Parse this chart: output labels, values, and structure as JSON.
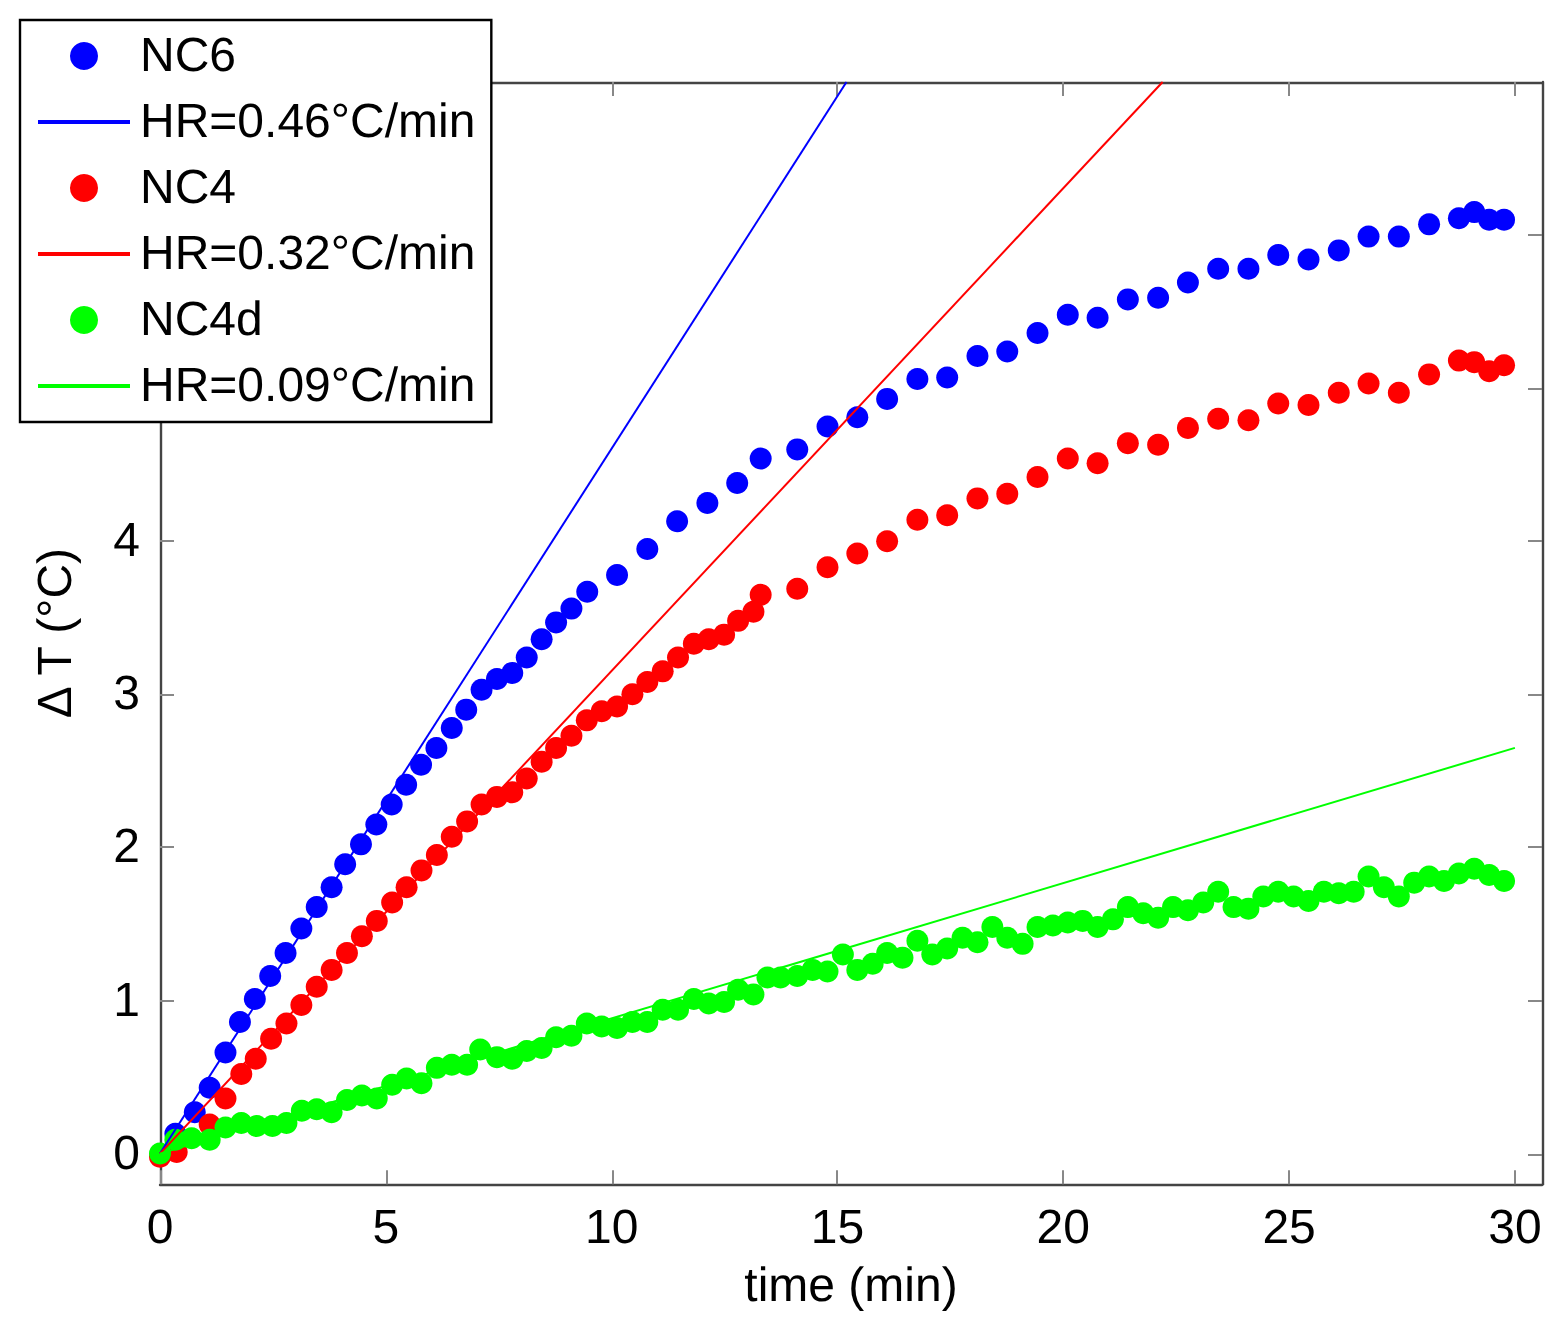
{
  "chart_data": {
    "type": "scatter",
    "xlabel": "time (min)",
    "ylabel": "Δ T (°C)",
    "xlim": [
      0,
      30.6
    ],
    "xticks": [
      0,
      5,
      10,
      15,
      20,
      25,
      30
    ],
    "ylim": [
      -0.2,
      7
    ],
    "yticks": [
      0,
      1,
      2,
      3,
      4,
      {
        "value": 5,
        "label": null
      },
      {
        "value": 6,
        "label": null
      }
    ],
    "grid": false,
    "legend": "top left",
    "marker": "circle",
    "series": [
      {
        "name": "NC6",
        "color": "#0000ff",
        "x": [
          0.34,
          0.77,
          1.1,
          1.45,
          1.77,
          2.1,
          2.44,
          2.78,
          3.13,
          3.47,
          3.8,
          4.1,
          4.45,
          4.79,
          5.13,
          5.45,
          5.78,
          6.12,
          6.46,
          6.78,
          7.12,
          7.46,
          7.8,
          8.12,
          8.45,
          8.77,
          9.11,
          9.46,
          10.12,
          10.79,
          11.45,
          12.12,
          12.78,
          13.3,
          14.11,
          14.78,
          15.44,
          16.1,
          16.77,
          17.43,
          18.1,
          18.76,
          19.43,
          20.1,
          20.76,
          21.43,
          22.1,
          22.76,
          23.43,
          24.1,
          24.76,
          25.43,
          26.1,
          26.76,
          27.43,
          28.1,
          28.76,
          29.1,
          29.43,
          29.76
        ],
        "values": [
          0.13,
          0.27,
          0.43,
          0.66,
          0.86,
          1.01,
          1.16,
          1.31,
          1.47,
          1.61,
          1.74,
          1.89,
          2.02,
          2.15,
          2.28,
          2.41,
          2.54,
          2.65,
          2.78,
          2.9,
          3.03,
          3.1,
          3.14,
          3.24,
          3.36,
          3.47,
          3.56,
          3.67,
          3.78,
          3.95,
          4.13,
          4.25,
          4.38,
          4.54,
          4.6,
          4.75,
          4.81,
          4.93,
          5.06,
          5.07,
          5.21,
          5.24,
          5.36,
          5.48,
          5.46,
          5.58,
          5.59,
          5.69,
          5.78,
          5.78,
          5.87,
          5.84,
          5.9,
          5.99,
          5.99,
          6.07,
          6.11,
          6.15,
          6.1,
          6.1
        ]
      },
      {
        "name": "HR=0.46°C/min",
        "type": "line",
        "marker": "none",
        "color": "#0000ff",
        "x": [
          0,
          15.2
        ],
        "values": [
          0,
          7
        ]
      },
      {
        "name": "NC4",
        "color": "#ff0000",
        "x": [
          0,
          0.37,
          1.1,
          1.45,
          1.8,
          2.12,
          2.46,
          2.8,
          3.13,
          3.47,
          3.8,
          4.14,
          4.47,
          4.8,
          5.14,
          5.46,
          5.79,
          6.13,
          6.46,
          6.8,
          7.12,
          7.46,
          7.8,
          8.12,
          8.45,
          8.77,
          9.11,
          9.45,
          9.78,
          10.12,
          10.46,
          10.79,
          11.13,
          11.47,
          11.82,
          12.15,
          12.49,
          12.8,
          13.14,
          13.3,
          14.11,
          14.78,
          15.44,
          16.1,
          16.77,
          17.43,
          18.1,
          18.76,
          19.43,
          20.1,
          20.76,
          21.43,
          22.1,
          22.76,
          23.43,
          24.1,
          24.76,
          25.43,
          26.1,
          26.76,
          27.43,
          28.1,
          28.76,
          29.1,
          29.43,
          29.76
        ],
        "values": [
          -0.02,
          0.01,
          0.19,
          0.36,
          0.52,
          0.62,
          0.75,
          0.85,
          0.97,
          1.09,
          1.2,
          1.31,
          1.42,
          1.52,
          1.64,
          1.74,
          1.85,
          1.95,
          2.07,
          2.17,
          2.28,
          2.33,
          2.36,
          2.45,
          2.56,
          2.65,
          2.73,
          2.83,
          2.89,
          2.92,
          3.0,
          3.08,
          3.15,
          3.24,
          3.33,
          3.36,
          3.39,
          3.48,
          3.54,
          3.65,
          3.69,
          3.83,
          3.92,
          4.0,
          4.14,
          4.17,
          4.28,
          4.31,
          4.42,
          4.54,
          4.51,
          4.64,
          4.63,
          4.74,
          4.8,
          4.79,
          4.9,
          4.89,
          4.97,
          5.03,
          4.97,
          5.09,
          5.18,
          5.17,
          5.11,
          5.15
        ]
      },
      {
        "name": "HR=0.32°C/min",
        "type": "line",
        "marker": "none",
        "color": "#ff0000",
        "x": [
          0,
          22.2
        ],
        "values": [
          0,
          7
        ]
      },
      {
        "name": "NC4d",
        "color": "#00ff00",
        "x": [
          0,
          0.34,
          0.7,
          1.1,
          1.45,
          1.8,
          2.14,
          2.49,
          2.8,
          3.14,
          3.47,
          3.8,
          4.14,
          4.47,
          4.8,
          5.14,
          5.46,
          5.79,
          6.13,
          6.46,
          6.8,
          7.09,
          7.46,
          7.8,
          8.12,
          8.45,
          8.77,
          9.11,
          9.45,
          9.78,
          10.12,
          10.46,
          10.79,
          11.13,
          11.47,
          11.82,
          12.15,
          12.49,
          12.8,
          13.14,
          13.45,
          13.74,
          14.11,
          14.45,
          14.78,
          15.12,
          15.44,
          15.78,
          16.1,
          16.44,
          16.77,
          17.1,
          17.43,
          17.77,
          18.1,
          18.43,
          18.76,
          19.1,
          19.43,
          19.77,
          20.1,
          20.43,
          20.76,
          21.1,
          21.43,
          21.77,
          22.1,
          22.43,
          22.76,
          23.1,
          23.43,
          23.77,
          24.1,
          24.43,
          24.76,
          25.1,
          25.43,
          25.77,
          26.1,
          26.43,
          26.76,
          27.1,
          27.43,
          27.77,
          28.1,
          28.43,
          28.76,
          29.1,
          29.43,
          29.76
        ],
        "values": [
          0,
          0.09,
          0.1,
          0.09,
          0.17,
          0.2,
          0.18,
          0.18,
          0.2,
          0.28,
          0.29,
          0.27,
          0.35,
          0.38,
          0.36,
          0.45,
          0.49,
          0.46,
          0.56,
          0.58,
          0.58,
          0.68,
          0.63,
          0.62,
          0.67,
          0.69,
          0.76,
          0.77,
          0.85,
          0.83,
          0.82,
          0.86,
          0.86,
          0.94,
          0.94,
          1.01,
          0.98,
          0.99,
          1.07,
          1.04,
          1.15,
          1.15,
          1.16,
          1.2,
          1.19,
          1.3,
          1.2,
          1.24,
          1.31,
          1.28,
          1.39,
          1.3,
          1.34,
          1.41,
          1.38,
          1.48,
          1.41,
          1.37,
          1.48,
          1.49,
          1.51,
          1.52,
          1.48,
          1.53,
          1.61,
          1.57,
          1.54,
          1.61,
          1.59,
          1.64,
          1.71,
          1.61,
          1.6,
          1.68,
          1.71,
          1.68,
          1.65,
          1.71,
          1.7,
          1.71,
          1.81,
          1.74,
          1.68,
          1.77,
          1.81,
          1.78,
          1.83,
          1.86,
          1.82,
          1.78
        ]
      },
      {
        "name": "HR=0.09°C/min",
        "type": "line",
        "marker": "none",
        "color": "#00ff00",
        "x": [
          0,
          30
        ],
        "values": [
          0,
          2.65
        ]
      }
    ]
  }
}
